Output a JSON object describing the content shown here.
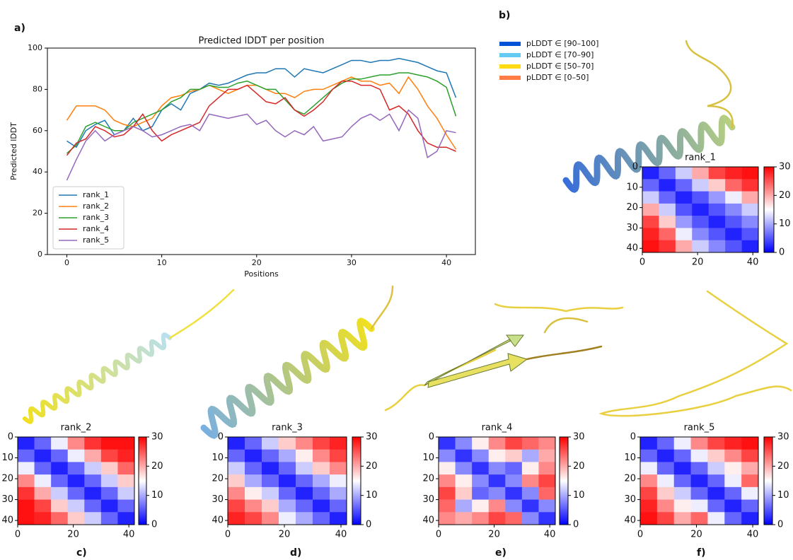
{
  "panel_labels": [
    "a)",
    "b)",
    "c)",
    "d)",
    "e)",
    "f)"
  ],
  "structure_legend": [
    {
      "label": "pLDDT ∈ [90–100]",
      "color": "#0053d6"
    },
    {
      "label": "pLDDT ∈ [70–90]",
      "color": "#65cbf3"
    },
    {
      "label": "pLDDT ∈ [50–70]",
      "color": "#ffdb13"
    },
    {
      "label": "pLDDT ∈ [0–50]",
      "color": "#ff7d45"
    }
  ],
  "chart_data": [
    {
      "type": "line",
      "title": "Predicted lDDT per position",
      "x_label": "Positions",
      "y_label": "Predicted lDDT",
      "x": [
        0,
        1,
        2,
        3,
        4,
        5,
        6,
        7,
        8,
        9,
        10,
        11,
        12,
        13,
        14,
        15,
        16,
        17,
        18,
        19,
        20,
        21,
        22,
        23,
        24,
        25,
        26,
        27,
        28,
        29,
        30,
        31,
        32,
        33,
        34,
        35,
        36,
        37,
        38,
        39,
        40,
        41
      ],
      "series": [
        {
          "name": "rank_1",
          "color": "#1f77b4",
          "values": [
            55,
            52,
            60,
            63,
            65,
            58,
            60,
            66,
            60,
            62,
            70,
            73,
            70,
            78,
            80,
            83,
            82,
            83,
            85,
            87,
            88,
            88,
            90,
            90,
            86,
            90,
            89,
            88,
            90,
            92,
            94,
            94,
            93,
            94,
            94,
            95,
            94,
            93,
            91,
            89,
            88,
            76
          ]
        },
        {
          "name": "rank_2",
          "color": "#ff7f0e",
          "values": [
            65,
            72,
            72,
            72,
            70,
            65,
            63,
            62,
            64,
            66,
            72,
            76,
            77,
            79,
            80,
            82,
            80,
            78,
            80,
            82,
            82,
            80,
            78,
            78,
            76,
            79,
            80,
            80,
            82,
            84,
            86,
            84,
            84,
            82,
            83,
            78,
            86,
            80,
            72,
            66,
            58,
            51
          ]
        },
        {
          "name": "rank_3",
          "color": "#2ca02c",
          "values": [
            49,
            53,
            62,
            64,
            62,
            60,
            60,
            64,
            66,
            68,
            70,
            74,
            76,
            80,
            80,
            82,
            81,
            81,
            83,
            84,
            82,
            80,
            80,
            75,
            70,
            68,
            72,
            76,
            80,
            83,
            85,
            85,
            86,
            87,
            87,
            88,
            88,
            87,
            86,
            84,
            81,
            67
          ]
        },
        {
          "name": "rank_4",
          "color": "#d62728",
          "values": [
            48,
            54,
            56,
            62,
            60,
            57,
            58,
            62,
            68,
            60,
            55,
            58,
            60,
            62,
            64,
            72,
            76,
            80,
            80,
            82,
            78,
            74,
            73,
            76,
            70,
            67,
            70,
            74,
            80,
            84,
            84,
            82,
            82,
            80,
            70,
            72,
            68,
            60,
            54,
            52,
            52,
            50
          ]
        },
        {
          "name": "rank_5",
          "color": "#9467bd",
          "values": [
            36,
            46,
            55,
            60,
            55,
            58,
            60,
            62,
            60,
            57,
            58,
            60,
            62,
            63,
            60,
            68,
            67,
            66,
            67,
            68,
            63,
            65,
            60,
            57,
            60,
            58,
            62,
            55,
            56,
            57,
            62,
            66,
            68,
            65,
            68,
            60,
            70,
            66,
            47,
            50,
            60,
            59
          ]
        }
      ],
      "xlim": [
        -2.05,
        43.05
      ],
      "xticks": [
        0,
        10,
        20,
        30,
        40
      ],
      "ylim": [
        0,
        100
      ],
      "yticks": [
        0,
        20,
        40,
        60,
        80,
        100
      ],
      "grid": false,
      "legend": "lower left"
    },
    {
      "type": "heatmap",
      "title": "rank_1",
      "xlim": [
        0,
        42
      ],
      "ylim": [
        42,
        0
      ],
      "xticks": [
        0,
        20,
        40
      ],
      "yticks": [
        0,
        10,
        20,
        30,
        40
      ],
      "clim": [
        0,
        30
      ],
      "cticks": [
        0,
        10,
        20,
        30
      ],
      "colormap": [
        "#0000ff",
        "#ffffff",
        "#ff0000"
      ],
      "values": [
        [
          2,
          6,
          12,
          20,
          26,
          28,
          29
        ],
        [
          6,
          2,
          6,
          12,
          18,
          24,
          27
        ],
        [
          12,
          6,
          2,
          5,
          9,
          14,
          20
        ],
        [
          20,
          12,
          5,
          2,
          5,
          8,
          12
        ],
        [
          26,
          18,
          9,
          5,
          2,
          5,
          8
        ],
        [
          28,
          24,
          14,
          8,
          5,
          2,
          5
        ],
        [
          29,
          27,
          20,
          12,
          8,
          5,
          2
        ]
      ]
    },
    {
      "type": "heatmap",
      "title": "rank_2",
      "xlim": [
        0,
        42
      ],
      "ylim": [
        42,
        0
      ],
      "xticks": [
        0,
        20,
        40
      ],
      "yticks": [
        0,
        10,
        20,
        30,
        40
      ],
      "clim": [
        0,
        30
      ],
      "cticks": [
        0,
        10,
        20,
        30
      ],
      "colormap": [
        "#0000ff",
        "#ffffff",
        "#ff0000"
      ],
      "values": [
        [
          2,
          6,
          14,
          22,
          27,
          29,
          29
        ],
        [
          6,
          2,
          6,
          14,
          20,
          26,
          28
        ],
        [
          14,
          6,
          2,
          6,
          12,
          18,
          24
        ],
        [
          22,
          14,
          6,
          2,
          6,
          12,
          18
        ],
        [
          27,
          20,
          12,
          6,
          2,
          6,
          12
        ],
        [
          29,
          26,
          18,
          12,
          6,
          2,
          6
        ],
        [
          29,
          28,
          24,
          18,
          12,
          6,
          2
        ]
      ]
    },
    {
      "type": "heatmap",
      "title": "rank_3",
      "xlim": [
        0,
        42
      ],
      "ylim": [
        42,
        0
      ],
      "xticks": [
        0,
        20,
        40
      ],
      "yticks": [
        0,
        10,
        20,
        30,
        40
      ],
      "clim": [
        0,
        30
      ],
      "cticks": [
        0,
        10,
        20,
        30
      ],
      "colormap": [
        "#0000ff",
        "#ffffff",
        "#ff0000"
      ],
      "values": [
        [
          2,
          6,
          12,
          18,
          22,
          26,
          28
        ],
        [
          6,
          2,
          6,
          10,
          16,
          22,
          26
        ],
        [
          12,
          6,
          2,
          6,
          12,
          18,
          22
        ],
        [
          18,
          10,
          6,
          2,
          6,
          10,
          14
        ],
        [
          22,
          16,
          12,
          6,
          2,
          6,
          10
        ],
        [
          26,
          22,
          18,
          10,
          6,
          2,
          6
        ],
        [
          28,
          26,
          22,
          14,
          10,
          6,
          2
        ]
      ]
    },
    {
      "type": "heatmap",
      "title": "rank_4",
      "xlim": [
        0,
        42
      ],
      "ylim": [
        42,
        0
      ],
      "xticks": [
        0,
        20,
        40
      ],
      "yticks": [
        0,
        10,
        20,
        30,
        40
      ],
      "clim": [
        0,
        30
      ],
      "cticks": [
        0,
        10,
        20,
        30
      ],
      "colormap": [
        "#0000ff",
        "#ffffff",
        "#ff0000"
      ],
      "values": [
        [
          3,
          8,
          16,
          22,
          26,
          24,
          22
        ],
        [
          8,
          3,
          8,
          16,
          18,
          10,
          20
        ],
        [
          16,
          8,
          3,
          8,
          6,
          16,
          22
        ],
        [
          22,
          16,
          8,
          3,
          8,
          22,
          26
        ],
        [
          26,
          18,
          6,
          8,
          3,
          8,
          24
        ],
        [
          24,
          10,
          16,
          22,
          8,
          3,
          8
        ],
        [
          22,
          20,
          22,
          26,
          24,
          8,
          3
        ]
      ]
    },
    {
      "type": "heatmap",
      "title": "rank_5",
      "xlim": [
        0,
        42
      ],
      "ylim": [
        42,
        0
      ],
      "xticks": [
        0,
        20,
        40
      ],
      "yticks": [
        0,
        10,
        20,
        30,
        40
      ],
      "clim": [
        0,
        30
      ],
      "cticks": [
        0,
        10,
        20,
        30
      ],
      "colormap": [
        "#0000ff",
        "#ffffff",
        "#ff0000"
      ],
      "values": [
        [
          2,
          6,
          14,
          22,
          26,
          28,
          29
        ],
        [
          6,
          2,
          6,
          14,
          18,
          22,
          26
        ],
        [
          14,
          6,
          2,
          6,
          12,
          16,
          20
        ],
        [
          22,
          14,
          6,
          2,
          6,
          14,
          24
        ],
        [
          26,
          18,
          12,
          6,
          2,
          6,
          14
        ],
        [
          28,
          22,
          16,
          14,
          6,
          2,
          6
        ],
        [
          29,
          26,
          20,
          24,
          14,
          6,
          2
        ]
      ]
    }
  ]
}
